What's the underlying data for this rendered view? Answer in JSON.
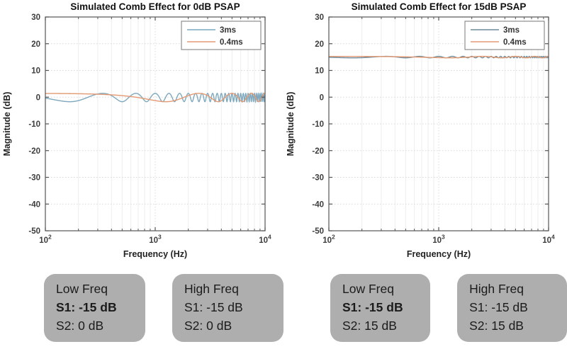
{
  "page": {
    "background": "#ffffff"
  },
  "chart_data": [
    {
      "type": "line",
      "title": "Simulated Comb Effect for 0dB PSAP",
      "xlabel": "Frequency (Hz)",
      "ylabel": "Magnitude (dB)",
      "x_scale": "log",
      "xlim": [
        100,
        10000
      ],
      "ylim": [
        -50,
        30
      ],
      "yticks": [
        30,
        20,
        10,
        0,
        -10,
        -20,
        -30,
        -40,
        -50
      ],
      "xticks": [
        {
          "value": 100,
          "base": "10",
          "exp": "2"
        },
        {
          "value": 1000,
          "base": "10",
          "exp": "3"
        },
        {
          "value": 10000,
          "base": "10",
          "exp": "4"
        }
      ],
      "grid": true,
      "legend": {
        "position": "top-right",
        "entries": [
          "3ms",
          "0.4ms"
        ]
      },
      "series": [
        {
          "name": "3ms",
          "color": "#7da8bd",
          "delay_ms": 3.0,
          "direct_gain_db": 0,
          "delayed_gain_db": -15,
          "ripple_min_db": -1.7,
          "ripple_max_db": 1.42,
          "ripple_spacing_hz": 333
        },
        {
          "name": "0.4ms",
          "color": "#e39a73",
          "delay_ms": 0.4,
          "direct_gain_db": 0,
          "delayed_gain_db": -15,
          "ripple_min_db": -1.7,
          "ripple_max_db": 1.42,
          "ripple_spacing_hz": 2500
        }
      ]
    },
    {
      "type": "line",
      "title": "Simulated Comb Effect for 15dB PSAP",
      "xlabel": "Frequency (Hz)",
      "ylabel": "Magnitude (dB)",
      "x_scale": "log",
      "xlim": [
        100,
        10000
      ],
      "ylim": [
        -50,
        30
      ],
      "yticks": [
        30,
        20,
        10,
        0,
        -10,
        -20,
        -30,
        -40,
        -50
      ],
      "xticks": [
        {
          "value": 100,
          "base": "10",
          "exp": "2"
        },
        {
          "value": 1000,
          "base": "10",
          "exp": "3"
        },
        {
          "value": 10000,
          "base": "10",
          "exp": "4"
        }
      ],
      "grid": true,
      "legend": {
        "position": "top-right",
        "entries": [
          "3ms",
          "0.4ms"
        ]
      },
      "series": [
        {
          "name": "3ms",
          "color": "#6d8c9b",
          "delay_ms": 3.0,
          "direct_gain_db": 15,
          "delayed_gain_db": -15,
          "ripple_min_db": 14.72,
          "ripple_max_db": 15.27,
          "ripple_spacing_hz": 333
        },
        {
          "name": "0.4ms",
          "color": "#e39a73",
          "delay_ms": 0.4,
          "direct_gain_db": 15,
          "delayed_gain_db": -15,
          "ripple_min_db": 14.72,
          "ripple_max_db": 15.27,
          "ripple_spacing_hz": 2500
        }
      ]
    }
  ],
  "annotations": {
    "box_bg": "#aeaeae",
    "panels": [
      {
        "boxes": [
          {
            "title": "Low Freq",
            "line1": "S1: -15 dB",
            "line2": "S2: 0 dB",
            "line1_bold": true
          },
          {
            "title": "High Freq",
            "line1": "S1: -15 dB",
            "line2": "S2: 0 dB",
            "line1_bold": false
          }
        ]
      },
      {
        "boxes": [
          {
            "title": "Low Freq",
            "line1": "S1: -15 dB",
            "line2": "S2: 15 dB",
            "line1_bold": true
          },
          {
            "title": "High Freq",
            "line1": "S1: -15 dB",
            "line2": "S2: 15 dB",
            "line1_bold": false
          }
        ]
      }
    ]
  },
  "colors": {
    "axis": "#555555",
    "grid_major": "#d9d9d9",
    "grid_minor": "#eeeeee",
    "tick_text": "#3c3c3c",
    "title_text": "#111111",
    "legend_border": "#777777"
  }
}
